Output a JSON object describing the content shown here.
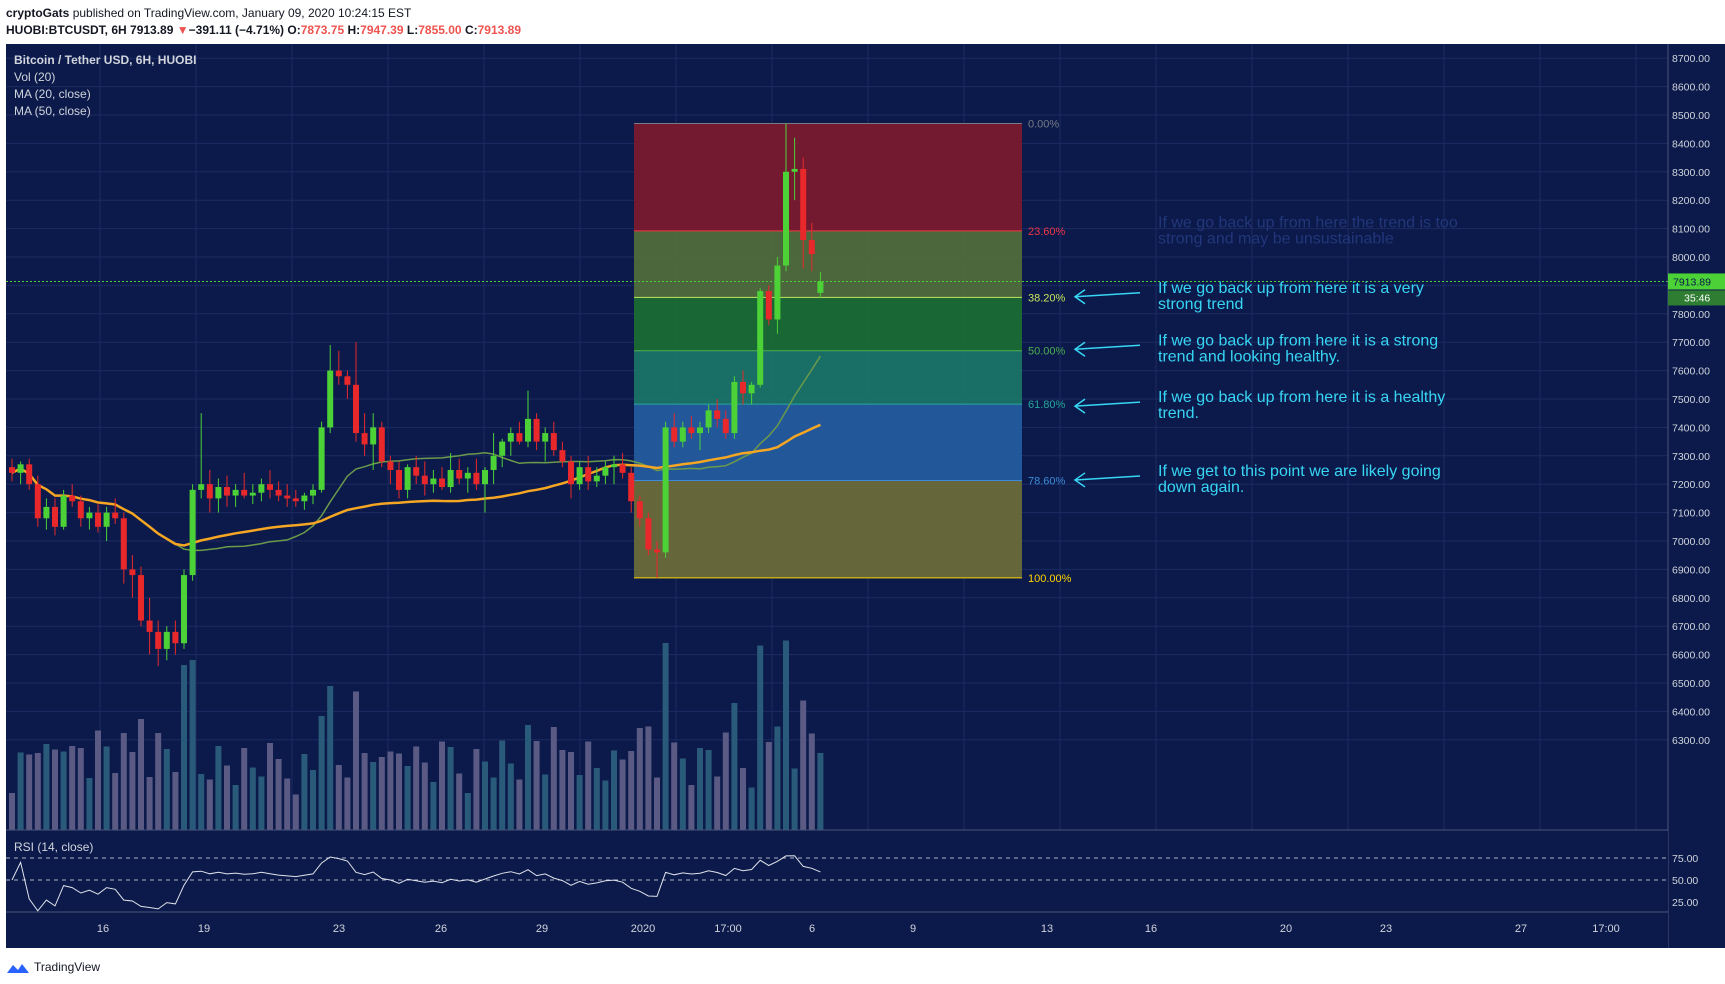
{
  "header": {
    "author": "cryptoGats",
    "published_text": "published on TradingView.com, January 09, 2020 10:24:15 EST",
    "symbol": "HUOBI:BTCUSDT, 6H",
    "last": "7913.89",
    "change_arrow": "▼",
    "change": "−391.11 (−4.71%)",
    "o_label": "O:",
    "o_value": "7873.75",
    "h_label": "H:",
    "h_value": "7947.39",
    "l_label": "L:",
    "l_value": "7855.00",
    "c_label": "C:",
    "c_value": "7913.89"
  },
  "legend": {
    "title": "Bitcoin / Tether USD, 6H, HUOBI",
    "vol": "Vol (20)",
    "ma20": "MA (20, close)",
    "ma50": "MA (50, close)"
  },
  "price_axis": {
    "labels": [
      "8700.00",
      "8600.00",
      "8500.00",
      "8400.00",
      "8300.00",
      "8200.00",
      "8100.00",
      "8000.00",
      "7800.00",
      "7700.00",
      "7600.00",
      "7500.00",
      "7400.00",
      "7300.00",
      "7200.00",
      "7100.00",
      "7000.00",
      "6900.00",
      "6800.00",
      "6700.00",
      "6600.00",
      "6500.00",
      "6400.00",
      "6300.00"
    ],
    "current_price_label": "7913.89",
    "countdown_label": "35:46"
  },
  "rsi": {
    "label": "RSI (14, close)",
    "axis_labels": [
      "75.00",
      "50.00",
      "25.00"
    ]
  },
  "time_axis": {
    "labels": [
      "16",
      "19",
      "23",
      "26",
      "29",
      "2020",
      "17:00",
      "6",
      "9",
      "13",
      "16",
      "20",
      "23",
      "27",
      "17:00"
    ]
  },
  "fib": {
    "levels": [
      {
        "label": "0.00%",
        "price": 8470,
        "label_color": "#787b86"
      },
      {
        "label": "23.60%",
        "price": 8092,
        "label_color": "#f23645"
      },
      {
        "label": "38.20%",
        "price": 7858,
        "label_color": "#c8e45e"
      },
      {
        "label": "50.00%",
        "price": 7670,
        "label_color": "#4caf50"
      },
      {
        "label": "61.80%",
        "price": 7482,
        "label_color": "#26a69a"
      },
      {
        "label": "78.60%",
        "price": 7213,
        "label_color": "#3d8bd8"
      },
      {
        "label": "100.00%",
        "price": 6870,
        "label_color": "#ffd600"
      }
    ]
  },
  "annotations": [
    {
      "line1": "If we go back up from here the trend is too",
      "line2": "strong and may be unsustainable",
      "price": 8090,
      "faint": true
    },
    {
      "line1": "If we go back up from here it is a very",
      "line2": "strong trend",
      "price": 7860,
      "faint": false
    },
    {
      "line1": "If we go back up from here it is a strong",
      "line2": "trend and looking healthy.",
      "price": 7675,
      "faint": false
    },
    {
      "line1": "If we go back up from here it is a healthy",
      "line2": "trend.",
      "price": 7475,
      "faint": false
    },
    {
      "line1": "If we get to this point we are likely going",
      "line2": "down again.",
      "price": 7215,
      "faint": false
    }
  ],
  "chart_data": {
    "type": "candlestick",
    "title": "Bitcoin / Tether USD, 6H, HUOBI",
    "ylim": [
      6250,
      8750
    ],
    "candles_ohlc": [
      [
        7260,
        7290,
        7210,
        7240
      ],
      [
        7240,
        7280,
        7200,
        7270
      ],
      [
        7270,
        7290,
        7180,
        7200
      ],
      [
        7200,
        7230,
        7050,
        7080
      ],
      [
        7080,
        7150,
        7040,
        7120
      ],
      [
        7120,
        7150,
        7020,
        7050
      ],
      [
        7050,
        7180,
        7040,
        7160
      ],
      [
        7160,
        7200,
        7120,
        7140
      ],
      [
        7140,
        7160,
        7050,
        7080
      ],
      [
        7080,
        7120,
        7040,
        7100
      ],
      [
        7100,
        7130,
        7030,
        7050
      ],
      [
        7050,
        7120,
        7000,
        7100
      ],
      [
        7100,
        7150,
        7060,
        7080
      ],
      [
        7080,
        7100,
        6850,
        6900
      ],
      [
        6900,
        6950,
        6800,
        6880
      ],
      [
        6880,
        6910,
        6700,
        6720
      ],
      [
        6720,
        6800,
        6600,
        6680
      ],
      [
        6680,
        6720,
        6560,
        6620
      ],
      [
        6620,
        6700,
        6580,
        6680
      ],
      [
        6680,
        6720,
        6600,
        6640
      ],
      [
        6640,
        6900,
        6620,
        6880
      ],
      [
        6880,
        7200,
        6860,
        7180
      ],
      [
        7180,
        7450,
        7150,
        7200
      ],
      [
        7200,
        7250,
        7100,
        7150
      ],
      [
        7150,
        7220,
        7100,
        7190
      ],
      [
        7190,
        7230,
        7120,
        7160
      ],
      [
        7160,
        7200,
        7120,
        7180
      ],
      [
        7180,
        7240,
        7150,
        7160
      ],
      [
        7160,
        7200,
        7130,
        7170
      ],
      [
        7170,
        7220,
        7140,
        7200
      ],
      [
        7200,
        7250,
        7150,
        7180
      ],
      [
        7180,
        7210,
        7140,
        7160
      ],
      [
        7160,
        7200,
        7120,
        7150
      ],
      [
        7150,
        7180,
        7120,
        7140
      ],
      [
        7140,
        7170,
        7110,
        7160
      ],
      [
        7160,
        7200,
        7130,
        7180
      ],
      [
        7180,
        7420,
        7170,
        7400
      ],
      [
        7400,
        7690,
        7380,
        7600
      ],
      [
        7600,
        7670,
        7550,
        7580
      ],
      [
        7580,
        7600,
        7500,
        7550
      ],
      [
        7550,
        7700,
        7350,
        7380
      ],
      [
        7380,
        7450,
        7300,
        7340
      ],
      [
        7340,
        7450,
        7250,
        7400
      ],
      [
        7400,
        7420,
        7260,
        7280
      ],
      [
        7280,
        7300,
        7200,
        7250
      ],
      [
        7250,
        7280,
        7150,
        7180
      ],
      [
        7180,
        7270,
        7150,
        7260
      ],
      [
        7260,
        7300,
        7200,
        7230
      ],
      [
        7230,
        7280,
        7160,
        7200
      ],
      [
        7200,
        7250,
        7170,
        7220
      ],
      [
        7220,
        7260,
        7180,
        7190
      ],
      [
        7190,
        7310,
        7170,
        7250
      ],
      [
        7250,
        7290,
        7200,
        7220
      ],
      [
        7220,
        7260,
        7170,
        7240
      ],
      [
        7240,
        7290,
        7180,
        7200
      ],
      [
        7200,
        7260,
        7100,
        7250
      ],
      [
        7250,
        7380,
        7200,
        7300
      ],
      [
        7300,
        7360,
        7260,
        7350
      ],
      [
        7350,
        7400,
        7300,
        7380
      ],
      [
        7380,
        7420,
        7340,
        7350
      ],
      [
        7350,
        7530,
        7330,
        7430
      ],
      [
        7430,
        7450,
        7320,
        7350
      ],
      [
        7350,
        7400,
        7280,
        7380
      ],
      [
        7380,
        7420,
        7300,
        7320
      ],
      [
        7320,
        7350,
        7260,
        7280
      ],
      [
        7280,
        7300,
        7150,
        7200
      ],
      [
        7200,
        7280,
        7180,
        7260
      ],
      [
        7260,
        7300,
        7180,
        7210
      ],
      [
        7210,
        7260,
        7190,
        7230
      ],
      [
        7230,
        7280,
        7200,
        7260
      ],
      [
        7260,
        7300,
        7200,
        7270
      ],
      [
        7270,
        7310,
        7220,
        7240
      ],
      [
        7240,
        7260,
        7100,
        7140
      ],
      [
        7140,
        7160,
        7050,
        7080
      ],
      [
        7080,
        7100,
        6950,
        6970
      ],
      [
        6970,
        7000,
        6870,
        6960
      ],
      [
        6960,
        7420,
        6940,
        7400
      ],
      [
        7400,
        7450,
        7330,
        7350
      ],
      [
        7350,
        7420,
        7330,
        7400
      ],
      [
        7400,
        7440,
        7360,
        7380
      ],
      [
        7380,
        7420,
        7320,
        7400
      ],
      [
        7400,
        7480,
        7380,
        7460
      ],
      [
        7460,
        7500,
        7400,
        7430
      ],
      [
        7430,
        7460,
        7360,
        7380
      ],
      [
        7380,
        7580,
        7360,
        7560
      ],
      [
        7560,
        7600,
        7480,
        7520
      ],
      [
        7520,
        7560,
        7480,
        7550
      ],
      [
        7550,
        7890,
        7540,
        7880
      ],
      [
        7880,
        7900,
        7760,
        7780
      ],
      [
        7780,
        8000,
        7730,
        7970
      ],
      [
        7970,
        8470,
        7950,
        8300
      ],
      [
        8300,
        8420,
        8200,
        8310
      ],
      [
        8310,
        8350,
        7960,
        8060
      ],
      [
        8060,
        8120,
        7950,
        8010
      ],
      [
        7873.75,
        7947.39,
        7855.0,
        7913.89
      ]
    ],
    "volume_shown_as_bars": true,
    "rsi_range": [
      0,
      100
    ],
    "rsi_levels": [
      75,
      50,
      25
    ]
  }
}
